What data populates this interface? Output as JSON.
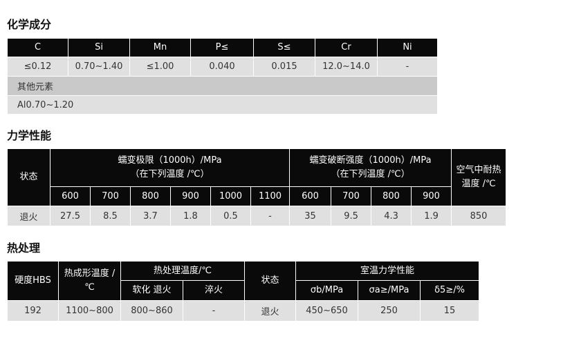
{
  "chem": {
    "title": "化学成分",
    "headers": [
      "C",
      "Si",
      "Mn",
      "P≤",
      "S≤",
      "Cr",
      "Ni"
    ],
    "values": [
      "≤0.12",
      "0.70~1.40",
      "≤1.00",
      "0.040",
      "0.015",
      "12.0~14.0",
      "-"
    ],
    "other_label": "其他元素",
    "other_value": "Al0.70~1.20"
  },
  "mech": {
    "title": "力学性能",
    "state": "状态",
    "creep_title": "蠕变极限（1000h）/MPa",
    "creep_sub": "（在下列温度 /℃）",
    "rupture_title": "蠕变破断强度（1000h）/MPa",
    "rupture_sub": "（在下列温度 /℃）",
    "air": "空气中耐热温度 /℃",
    "creep_temps": [
      "600",
      "700",
      "800",
      "900",
      "1000",
      "1100"
    ],
    "rupture_temps": [
      "600",
      "700",
      "800",
      "900"
    ],
    "row": {
      "state": "退火",
      "creep": [
        "27.5",
        "8.5",
        "3.7",
        "1.8",
        "0.5",
        "-"
      ],
      "rupture": [
        "35",
        "9.5",
        "4.3",
        "1.9"
      ],
      "air": "850"
    }
  },
  "heat": {
    "title": "热处理",
    "hardness": "硬度HBS",
    "forming": "热成形温度 /℃",
    "treat": "热处理温度/℃",
    "soft": "软化 退火",
    "quench": "淬火",
    "state": "状态",
    "room": "室温力学性能",
    "sb": "σb/MPa",
    "sa": "σa≥/MPa",
    "d5": "δ5≥/%",
    "row": [
      "192",
      "1100~800",
      "800~860",
      "-",
      "退火",
      "450~650",
      "250",
      "15"
    ]
  }
}
